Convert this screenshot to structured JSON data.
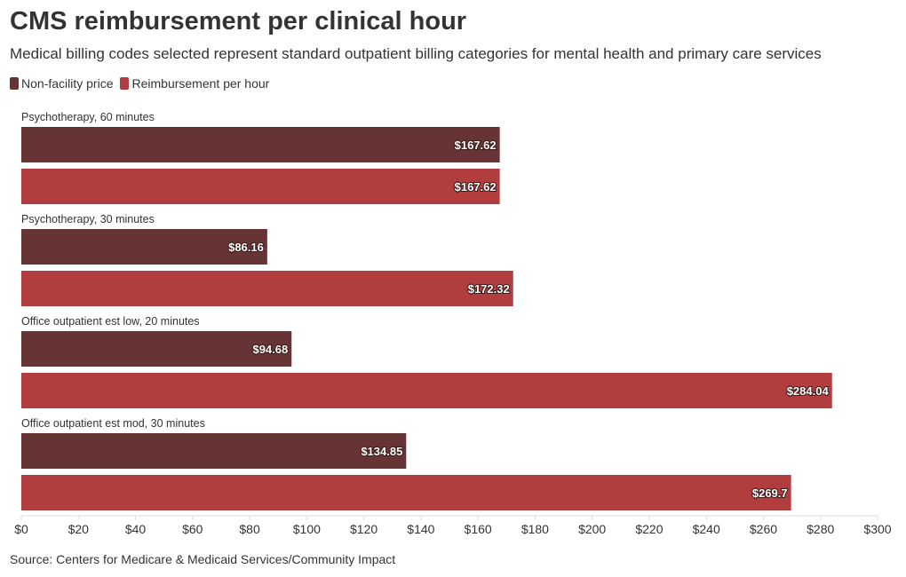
{
  "colors": {
    "non_facility": "#673435",
    "reimbursement": "#b13d3f",
    "axis": "#dddddd",
    "text": "#333333"
  },
  "chart_data": {
    "type": "bar",
    "orientation": "horizontal",
    "title": "CMS reimbursement per clinical hour",
    "subtitle": "Medical billing codes selected represent standard outpatient billing categories for mental health and primary care services",
    "categories": [
      "Psychotherapy, 60 minutes",
      "Psychotherapy, 30 minutes",
      "Office outpatient est low, 20 minutes",
      "Office outpatient est mod, 30 minutes"
    ],
    "series": [
      {
        "name": "Non-facility price",
        "values": [
          167.62,
          86.16,
          94.68,
          134.85
        ],
        "labels": [
          "$167.62",
          "$86.16",
          "$94.68",
          "$134.85"
        ]
      },
      {
        "name": "Reimbursement per hour",
        "values": [
          167.62,
          172.32,
          284.04,
          269.7
        ],
        "labels": [
          "$167.62",
          "$172.32",
          "$284.04",
          "$269.7"
        ]
      }
    ],
    "xlim": [
      0,
      300
    ],
    "xticks": [
      0,
      20,
      40,
      60,
      80,
      100,
      120,
      140,
      160,
      180,
      200,
      220,
      240,
      260,
      280,
      300
    ],
    "xtick_labels": [
      "$0",
      "$20",
      "$40",
      "$60",
      "$80",
      "$100",
      "$120",
      "$140",
      "$160",
      "$180",
      "$200",
      "$220",
      "$240",
      "$260",
      "$280",
      "$300"
    ],
    "legend_position": "top-left",
    "grid": false
  },
  "source": "Source: Centers for Medicare & Medicaid Services/Community Impact"
}
